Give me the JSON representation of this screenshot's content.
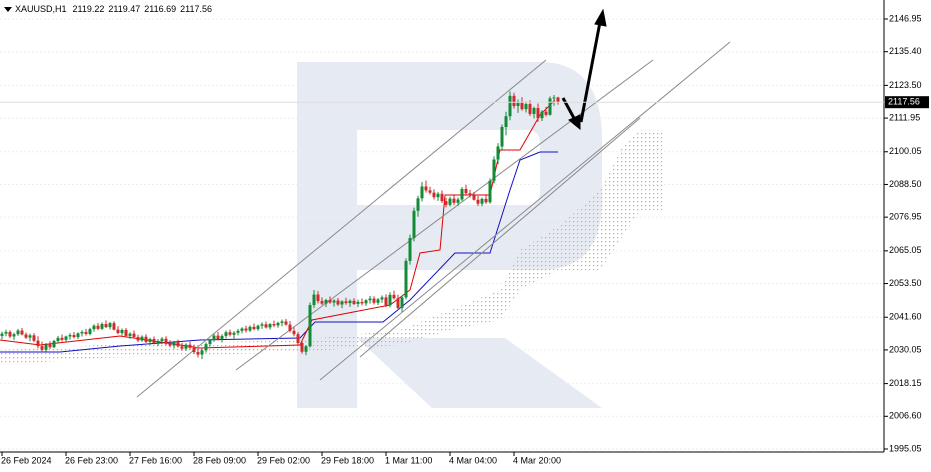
{
  "chart_data": {
    "type": "candlestick",
    "title": "XAUUSD,H1",
    "up_color": "#138a36",
    "down_color": "#d02b2b",
    "grid": true,
    "ylim": [
      1993.99,
      2153.66
    ],
    "yticks": [
      2146.95,
      {
        "value": 2135.4,
        "label": "2135.40"
      },
      {
        "value": 2123.5,
        "label": "2123.50"
      },
      2111.95,
      2100.05,
      {
        "value": 2088.5,
        "label": "2088.50"
      },
      2076.95,
      2065.05,
      {
        "value": 2053.5,
        "label": "2053.50"
      },
      {
        "value": 2041.6,
        "label": "2041.60"
      },
      2030.05,
      2018.15,
      {
        "value": 2006.6,
        "label": "2006.60"
      },
      1995.05
    ],
    "categories": [
      "26 Feb 2024",
      null,
      null,
      null,
      null,
      null,
      null,
      null,
      null,
      null,
      null,
      null,
      null,
      null,
      null,
      null,
      "26 Feb 23:00",
      null,
      null,
      null,
      null,
      null,
      null,
      null,
      null,
      null,
      null,
      null,
      null,
      null,
      null,
      null,
      "27 Feb 16:00",
      null,
      null,
      null,
      null,
      null,
      null,
      null,
      null,
      null,
      null,
      null,
      null,
      null,
      null,
      null,
      "28 Feb 09:00",
      null,
      null,
      null,
      null,
      null,
      null,
      null,
      null,
      null,
      null,
      null,
      null,
      null,
      null,
      null,
      "29 Feb 02:00",
      null,
      null,
      null,
      null,
      null,
      null,
      null,
      null,
      null,
      null,
      null,
      null,
      null,
      null,
      null,
      "29 Feb 18:00",
      null,
      null,
      null,
      null,
      null,
      null,
      null,
      null,
      null,
      null,
      null,
      null,
      null,
      null,
      null,
      "1 Mar 11:00",
      null,
      null,
      null,
      null,
      null,
      null,
      null,
      null,
      null,
      null,
      null,
      null,
      null,
      null,
      null,
      "4 Mar 04:00",
      null,
      null,
      null,
      null,
      null,
      null,
      null,
      null,
      null,
      null,
      null,
      null,
      null,
      null,
      null,
      "4 Mar 20:00",
      null,
      null,
      null,
      null,
      null,
      null,
      null,
      null,
      null,
      null,
      null
    ],
    "ohlc": [
      [
        2035.0,
        2036.5,
        2033.8,
        2035.8
      ],
      [
        2035.8,
        2037.2,
        2034.9,
        2036.4
      ],
      [
        2036.4,
        2037.0,
        2034.2,
        2034.8
      ],
      [
        2034.8,
        2036.1,
        2033.5,
        2035.6
      ],
      [
        2035.6,
        2037.5,
        2035.0,
        2036.9
      ],
      [
        2036.9,
        2037.8,
        2035.2,
        2035.5
      ],
      [
        2035.5,
        2036.2,
        2033.9,
        2034.4
      ],
      [
        2034.4,
        2035.8,
        2033.1,
        2035.2
      ],
      [
        2035.2,
        2036.0,
        2032.8,
        2033.3
      ],
      [
        2033.3,
        2034.9,
        2030.6,
        2031.4
      ],
      [
        2031.4,
        2033.0,
        2029.2,
        2030.1
      ],
      [
        2030.1,
        2032.5,
        2029.5,
        2032.0
      ],
      [
        2032.0,
        2033.1,
        2030.4,
        2031.0
      ],
      [
        2031.0,
        2033.6,
        2030.7,
        2033.2
      ],
      [
        2033.2,
        2035.0,
        2032.4,
        2034.3
      ],
      [
        2034.3,
        2035.5,
        2033.0,
        2033.6
      ],
      [
        2033.6,
        2035.1,
        2032.9,
        2034.8
      ],
      [
        2034.8,
        2036.0,
        2033.7,
        2035.3
      ],
      [
        2035.3,
        2036.4,
        2034.1,
        2034.6
      ],
      [
        2034.6,
        2036.2,
        2033.8,
        2035.9
      ],
      [
        2035.9,
        2037.0,
        2034.8,
        2036.4
      ],
      [
        2036.4,
        2037.5,
        2035.1,
        2035.7
      ],
      [
        2035.7,
        2037.9,
        2035.2,
        2037.4
      ],
      [
        2037.4,
        2039.1,
        2036.5,
        2038.6
      ],
      [
        2038.6,
        2039.6,
        2037.0,
        2037.5
      ],
      [
        2037.5,
        2039.8,
        2037.1,
        2039.2
      ],
      [
        2039.2,
        2040.5,
        2037.8,
        2038.1
      ],
      [
        2038.1,
        2039.9,
        2037.3,
        2039.5
      ],
      [
        2039.5,
        2040.2,
        2036.9,
        2037.2
      ],
      [
        2037.2,
        2038.4,
        2035.6,
        2036.0
      ],
      [
        2036.0,
        2037.6,
        2035.1,
        2037.1
      ],
      [
        2037.1,
        2037.8,
        2034.6,
        2035.0
      ],
      [
        2035.0,
        2036.3,
        2033.9,
        2035.8
      ],
      [
        2035.8,
        2036.9,
        2034.2,
        2034.6
      ],
      [
        2034.6,
        2035.4,
        2032.8,
        2033.4
      ],
      [
        2033.4,
        2035.2,
        2032.9,
        2034.7
      ],
      [
        2034.7,
        2035.6,
        2032.5,
        2032.9
      ],
      [
        2032.9,
        2034.4,
        2031.8,
        2033.9
      ],
      [
        2033.9,
        2034.8,
        2032.0,
        2032.5
      ],
      [
        2032.5,
        2033.9,
        2031.4,
        2033.2
      ],
      [
        2033.2,
        2034.6,
        2032.1,
        2034.0
      ],
      [
        2034.0,
        2034.9,
        2031.7,
        2032.2
      ],
      [
        2032.2,
        2033.5,
        2031.0,
        2031.6
      ],
      [
        2031.6,
        2033.2,
        2030.5,
        2032.8
      ],
      [
        2032.8,
        2033.7,
        2030.9,
        2031.3
      ],
      [
        2031.3,
        2032.6,
        2029.8,
        2030.5
      ],
      [
        2030.5,
        2032.4,
        2029.7,
        2031.9
      ],
      [
        2031.9,
        2033.0,
        2030.2,
        2030.8
      ],
      [
        2030.8,
        2031.9,
        2028.6,
        2029.3
      ],
      [
        2029.3,
        2030.8,
        2027.4,
        2028.4
      ],
      [
        2028.4,
        2030.5,
        2026.8,
        2029.9
      ],
      [
        2029.9,
        2032.7,
        2029.1,
        2032.1
      ],
      [
        2032.1,
        2034.0,
        2031.2,
        2033.6
      ],
      [
        2033.6,
        2035.8,
        2032.9,
        2035.1
      ],
      [
        2035.1,
        2036.4,
        2033.4,
        2033.9
      ],
      [
        2033.9,
        2035.6,
        2032.7,
        2035.0
      ],
      [
        2035.0,
        2036.9,
        2034.1,
        2036.3
      ],
      [
        2036.3,
        2037.2,
        2034.8,
        2035.4
      ],
      [
        2035.4,
        2036.7,
        2034.0,
        2036.1
      ],
      [
        2036.1,
        2037.5,
        2035.2,
        2036.8
      ],
      [
        2036.8,
        2038.1,
        2035.9,
        2037.6
      ],
      [
        2037.6,
        2038.6,
        2036.2,
        2036.9
      ],
      [
        2036.9,
        2038.7,
        2036.4,
        2038.2
      ],
      [
        2038.2,
        2039.4,
        2037.0,
        2037.4
      ],
      [
        2037.4,
        2039.0,
        2036.8,
        2038.6
      ],
      [
        2038.6,
        2039.8,
        2037.5,
        2039.1
      ],
      [
        2039.1,
        2040.1,
        2037.6,
        2038.0
      ],
      [
        2038.0,
        2039.5,
        2037.2,
        2039.2
      ],
      [
        2039.2,
        2040.4,
        2038.1,
        2038.7
      ],
      [
        2038.7,
        2040.0,
        2037.9,
        2039.6
      ],
      [
        2039.6,
        2040.8,
        2038.4,
        2040.1
      ],
      [
        2040.1,
        2041.0,
        2038.6,
        2039.0
      ],
      [
        2039.0,
        2040.2,
        2036.2,
        2036.8
      ],
      [
        2036.8,
        2038.0,
        2034.9,
        2035.6
      ],
      [
        2035.6,
        2036.4,
        2031.8,
        2032.5
      ],
      [
        2032.5,
        2033.6,
        2028.7,
        2029.4
      ],
      [
        2029.4,
        2031.8,
        2028.2,
        2031.3
      ],
      [
        2031.3,
        2046.8,
        2030.9,
        2045.9
      ],
      [
        2045.9,
        2051.2,
        2044.8,
        2049.6
      ],
      [
        2049.6,
        2050.8,
        2046.5,
        2047.3
      ],
      [
        2047.3,
        2048.6,
        2045.9,
        2046.4
      ],
      [
        2046.4,
        2048.1,
        2045.2,
        2047.7
      ],
      [
        2047.7,
        2048.9,
        2046.3,
        2046.8
      ],
      [
        2046.8,
        2048.0,
        2045.4,
        2047.5
      ],
      [
        2047.5,
        2048.4,
        2045.6,
        2046.1
      ],
      [
        2046.1,
        2047.6,
        2044.8,
        2047.2
      ],
      [
        2047.2,
        2048.5,
        2046.0,
        2046.6
      ],
      [
        2046.6,
        2047.9,
        2045.3,
        2047.4
      ],
      [
        2047.4,
        2048.3,
        2045.9,
        2046.3
      ],
      [
        2046.3,
        2047.8,
        2045.1,
        2047.0
      ],
      [
        2047.0,
        2048.2,
        2045.8,
        2046.5
      ],
      [
        2046.5,
        2048.0,
        2045.6,
        2047.6
      ],
      [
        2047.6,
        2049.1,
        2046.4,
        2048.2
      ],
      [
        2048.2,
        2049.0,
        2046.1,
        2046.7
      ],
      [
        2046.7,
        2048.4,
        2045.9,
        2047.9
      ],
      [
        2047.9,
        2049.3,
        2046.7,
        2048.6
      ],
      [
        2048.6,
        2049.7,
        2045.2,
        2045.8
      ],
      [
        2045.8,
        2050.4,
        2045.1,
        2049.5
      ],
      [
        2049.5,
        2051.0,
        2047.8,
        2048.3
      ],
      [
        2048.3,
        2049.6,
        2044.1,
        2044.9
      ],
      [
        2044.9,
        2049.2,
        2043.5,
        2048.6
      ],
      [
        2048.6,
        2062.4,
        2047.9,
        2061.5
      ],
      [
        2061.5,
        2070.8,
        2060.2,
        2069.6
      ],
      [
        2069.6,
        2080.3,
        2068.4,
        2079.2
      ],
      [
        2079.2,
        2084.5,
        2077.1,
        2083.6
      ],
      [
        2083.6,
        2089.4,
        2082.5,
        2087.8
      ],
      [
        2087.8,
        2089.9,
        2085.6,
        2086.4
      ],
      [
        2086.4,
        2087.7,
        2084.9,
        2085.6
      ],
      [
        2085.6,
        2086.8,
        2083.2,
        2084.0
      ],
      [
        2084.0,
        2085.9,
        2082.7,
        2085.2
      ],
      [
        2085.2,
        2086.4,
        2081.9,
        2082.6
      ],
      [
        2082.6,
        2083.8,
        2080.4,
        2081.3
      ],
      [
        2081.3,
        2084.2,
        2080.7,
        2083.5
      ],
      [
        2083.5,
        2084.6,
        2081.2,
        2082.0
      ],
      [
        2082.0,
        2083.9,
        2081.0,
        2083.2
      ],
      [
        2083.2,
        2087.6,
        2082.6,
        2086.9
      ],
      [
        2086.9,
        2088.4,
        2084.8,
        2085.4
      ],
      [
        2085.4,
        2086.6,
        2083.9,
        2084.6
      ],
      [
        2084.6,
        2085.8,
        2082.8,
        2083.1
      ],
      [
        2083.1,
        2084.5,
        2080.9,
        2081.7
      ],
      [
        2081.7,
        2083.9,
        2080.8,
        2083.4
      ],
      [
        2083.4,
        2085.1,
        2081.6,
        2082.2
      ],
      [
        2082.2,
        2090.6,
        2081.7,
        2089.8
      ],
      [
        2089.8,
        2098.4,
        2088.9,
        2097.3
      ],
      [
        2097.3,
        2103.1,
        2095.6,
        2101.9
      ],
      [
        2101.9,
        2109.7,
        2100.4,
        2108.8
      ],
      [
        2108.8,
        2114.2,
        2105.9,
        2112.6
      ],
      [
        2112.6,
        2121.4,
        2111.2,
        2119.8
      ],
      [
        2119.8,
        2120.9,
        2115.3,
        2116.2
      ],
      [
        2116.2,
        2118.5,
        2113.8,
        2117.4
      ],
      [
        2117.4,
        2119.3,
        2114.6,
        2115.1
      ],
      [
        2115.1,
        2117.8,
        2113.9,
        2116.9
      ],
      [
        2116.9,
        2118.2,
        2112.7,
        2113.4
      ],
      [
        2113.4,
        2116.0,
        2111.8,
        2115.5
      ],
      [
        2115.5,
        2117.1,
        2110.6,
        2111.9
      ],
      [
        2111.9,
        2114.8,
        2110.9,
        2114.2
      ],
      [
        2114.2,
        2115.9,
        2112.5,
        2113.1
      ],
      [
        2113.1,
        2119.6,
        2112.8,
        2118.9
      ],
      [
        2118.9,
        2120.1,
        2116.3,
        2119.22
      ],
      [
        2119.22,
        2119.47,
        2116.69,
        2117.56
      ]
    ]
  }
}
